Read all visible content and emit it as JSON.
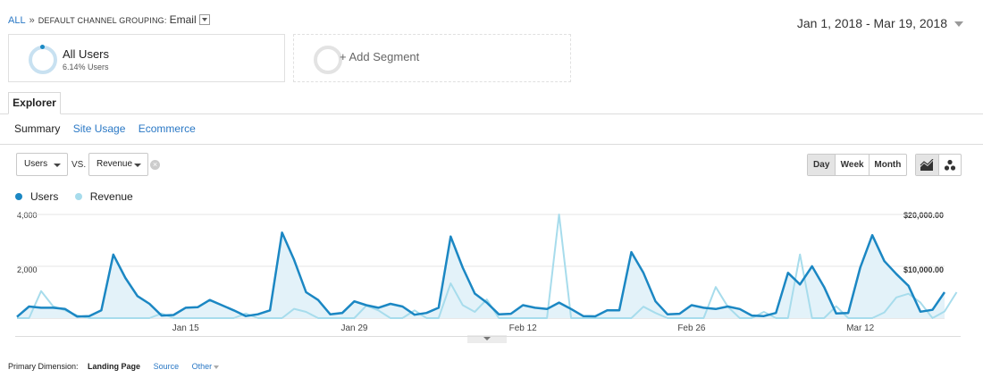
{
  "breadcrumb": {
    "all": "ALL",
    "separator": "»",
    "grouping_label": "DEFAULT CHANNEL GROUPING:",
    "grouping_value": "Email"
  },
  "date_range": "Jan 1, 2018 - Mar 19, 2018",
  "segments": [
    {
      "name": "All Users",
      "subtitle": "6.14% Users"
    },
    {
      "add_label": "+ Add Segment"
    }
  ],
  "tab": "Explorer",
  "subtabs": [
    "Summary",
    "Site Usage",
    "Ecommerce"
  ],
  "metric_selectors": {
    "primary": "Users",
    "vs_label": "VS.",
    "secondary": "Revenue",
    "clear_symbol": "×"
  },
  "granularity": [
    "Day",
    "Week",
    "Month"
  ],
  "granularity_selected": "Day",
  "chart_view_icons": [
    "line-chart-icon",
    "motion-chart-icon"
  ],
  "legend": [
    {
      "name": "Users",
      "color": "#1b87c3"
    },
    {
      "name": "Revenue",
      "color": "#a7dcec"
    }
  ],
  "chart_data": {
    "type": "area",
    "y_left_ticks": [
      "4,000",
      "2,000"
    ],
    "y_right_ticks": [
      "$20,000.00",
      "$10,000.00"
    ],
    "y_left_range": [
      0,
      4000
    ],
    "y_right_range": [
      0,
      20000
    ],
    "x_tick_labels": [
      {
        "label": "Jan 15",
        "day": 14
      },
      {
        "label": "Jan 29",
        "day": 28
      },
      {
        "label": "Feb 12",
        "day": 42
      },
      {
        "label": "Feb 26",
        "day": 56
      },
      {
        "label": "Mar 12",
        "day": 70
      }
    ],
    "series": [
      {
        "name": "Users",
        "values": [
          50,
          450,
          400,
          400,
          350,
          60,
          80,
          300,
          2450,
          1550,
          850,
          550,
          100,
          120,
          400,
          420,
          700,
          500,
          300,
          80,
          150,
          300,
          3300,
          2250,
          1000,
          700,
          150,
          200,
          650,
          500,
          400,
          550,
          450,
          130,
          200,
          400,
          3150,
          1950,
          950,
          600,
          150,
          170,
          500,
          400,
          350,
          600,
          350,
          80,
          70,
          300,
          300,
          2550,
          1750,
          650,
          150,
          170,
          500,
          400,
          350,
          450,
          350,
          100,
          80,
          200,
          1750,
          1300,
          2000,
          1200,
          180,
          200,
          1950,
          3200,
          2200,
          1700,
          1250,
          250,
          320,
          1000
        ]
      },
      {
        "name": "Revenue",
        "values": [
          0,
          0,
          5200,
          2300,
          1500,
          500,
          0,
          0,
          0,
          0,
          0,
          0,
          900,
          0,
          0,
          0,
          0,
          0,
          0,
          900,
          0,
          0,
          0,
          1800,
          1200,
          0,
          0,
          0,
          0,
          2400,
          1500,
          0,
          0,
          1500,
          0,
          0,
          6700,
          2500,
          1200,
          3600,
          0,
          0,
          0,
          0,
          0,
          20000,
          0,
          0,
          0,
          0,
          0,
          0,
          2200,
          1000,
          0,
          0,
          0,
          0,
          6000,
          2200,
          0,
          0,
          1200,
          0,
          0,
          12300,
          0,
          0,
          2300,
          0,
          0,
          0,
          1100,
          4000,
          4700,
          3000,
          0,
          1300,
          5000
        ]
      }
    ]
  },
  "primary_dimension": {
    "label": "Primary Dimension:",
    "current": "Landing Page",
    "options": [
      "Source",
      "Other"
    ]
  }
}
